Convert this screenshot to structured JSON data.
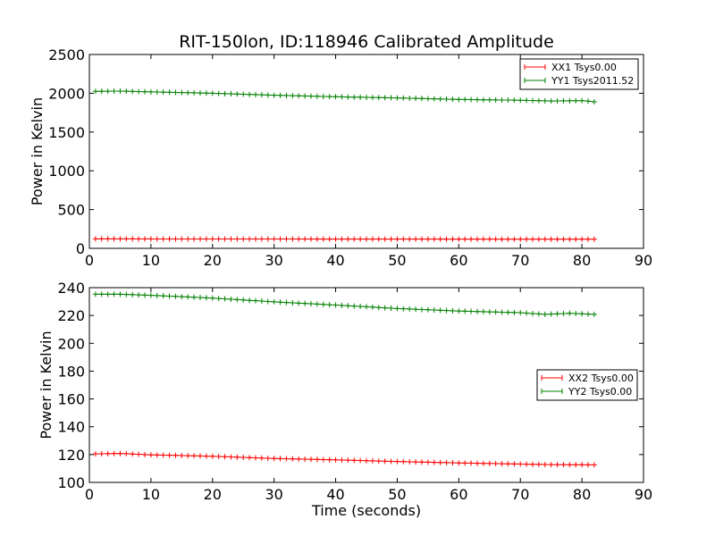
{
  "chart_data": [
    {
      "type": "line",
      "title": "RIT-150lon, ID:118946 Calibrated Amplitude",
      "xlabel": "",
      "ylabel": "Power in Kelvin",
      "xlim": [
        0,
        90
      ],
      "ylim": [
        0,
        2500
      ],
      "xticks": [
        "0",
        "10",
        "20",
        "30",
        "40",
        "50",
        "60",
        "70",
        "80",
        "90"
      ],
      "yticks": [
        "0",
        "500",
        "1000",
        "1500",
        "2000",
        "2500"
      ],
      "grid": false,
      "legend_position": "top-right",
      "marker": "+",
      "x_start": 1,
      "x_end": 82,
      "series": [
        {
          "name": "XX1 Tsys0.00",
          "color": "#ff0000",
          "anchors_x": [
            1,
            82
          ],
          "anchors_y": [
            122,
            118
          ]
        },
        {
          "name": "YY1 Tsys2011.52",
          "color": "#008000",
          "anchors_x": [
            1,
            5,
            10,
            20,
            30,
            40,
            50,
            60,
            70,
            75,
            80,
            82
          ],
          "anchors_y": [
            2025,
            2028,
            2018,
            2000,
            1975,
            1955,
            1940,
            1920,
            1910,
            1900,
            1905,
            1890
          ]
        }
      ]
    },
    {
      "type": "line",
      "title": "",
      "xlabel": "Time (seconds)",
      "ylabel": "Power in Kelvin",
      "xlim": [
        0,
        90
      ],
      "ylim": [
        100,
        240
      ],
      "xticks": [
        "0",
        "10",
        "20",
        "30",
        "40",
        "50",
        "60",
        "70",
        "80",
        "90"
      ],
      "yticks": [
        "100",
        "120",
        "140",
        "160",
        "180",
        "200",
        "220",
        "240"
      ],
      "grid": false,
      "legend_position": "center-right",
      "marker": "+",
      "x_start": 1,
      "x_end": 82,
      "series": [
        {
          "name": "XX2 Tsys0.00",
          "color": "#ff0000",
          "anchors_x": [
            1,
            5,
            10,
            20,
            30,
            40,
            50,
            60,
            70,
            75,
            82
          ],
          "anchors_y": [
            120.5,
            120.8,
            119.8,
            118.8,
            117.2,
            116.2,
            115.0,
            114.0,
            113.2,
            112.8,
            112.6
          ]
        },
        {
          "name": "YY2 Tsys0.00",
          "color": "#008000",
          "anchors_x": [
            1,
            5,
            10,
            20,
            30,
            40,
            50,
            60,
            70,
            74,
            78,
            82
          ],
          "anchors_y": [
            235.3,
            235.3,
            234.5,
            232.5,
            229.8,
            227.5,
            225.0,
            223.2,
            222.0,
            220.8,
            221.6,
            220.8
          ]
        }
      ]
    }
  ]
}
